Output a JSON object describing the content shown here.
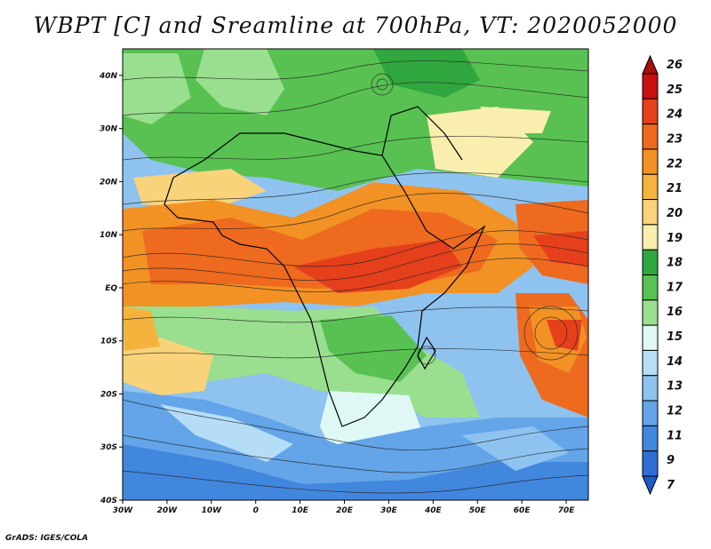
{
  "title": "WBPT [C] and Sreamline at 700hPa, VT: 2020052000",
  "credit": "GrADS: IGES/COLA",
  "map": {
    "lon_range": [
      -30,
      75
    ],
    "lat_range": [
      -40,
      45
    ],
    "lon_ticks": [
      {
        "value": -30,
        "label": "30W"
      },
      {
        "value": -20,
        "label": "20W"
      },
      {
        "value": -10,
        "label": "10W"
      },
      {
        "value": 0,
        "label": "0"
      },
      {
        "value": 10,
        "label": "10E"
      },
      {
        "value": 20,
        "label": "20E"
      },
      {
        "value": 30,
        "label": "30E"
      },
      {
        "value": 40,
        "label": "40E"
      },
      {
        "value": 50,
        "label": "50E"
      },
      {
        "value": 60,
        "label": "60E"
      },
      {
        "value": 70,
        "label": "70E"
      }
    ],
    "lat_ticks": [
      {
        "value": 40,
        "label": "40N"
      },
      {
        "value": 30,
        "label": "30N"
      },
      {
        "value": 20,
        "label": "20N"
      },
      {
        "value": 10,
        "label": "10N"
      },
      {
        "value": 0,
        "label": "EQ"
      },
      {
        "value": -10,
        "label": "10S"
      },
      {
        "value": -20,
        "label": "20S"
      },
      {
        "value": -30,
        "label": "30S"
      },
      {
        "value": -40,
        "label": "40S"
      }
    ]
  },
  "colorbar": {
    "levels": [
      {
        "label": "26",
        "color": "#a50f0d"
      },
      {
        "label": "25",
        "color": "#c8100e"
      },
      {
        "label": "24",
        "color": "#e5401b"
      },
      {
        "label": "23",
        "color": "#ee6a1f"
      },
      {
        "label": "22",
        "color": "#f29225"
      },
      {
        "label": "21",
        "color": "#f5b33e"
      },
      {
        "label": "20",
        "color": "#f9d37a"
      },
      {
        "label": "19",
        "color": "#faeeae"
      },
      {
        "label": "18",
        "color": "#2fa63e"
      },
      {
        "label": "17",
        "color": "#58c152"
      },
      {
        "label": "16",
        "color": "#9adf8f"
      },
      {
        "label": "15",
        "color": "#dff8f6"
      },
      {
        "label": "14",
        "color": "#b6ddf6"
      },
      {
        "label": "13",
        "color": "#8ec3f0"
      },
      {
        "label": "12",
        "color": "#63a5e8"
      },
      {
        "label": "11",
        "color": "#4287de"
      },
      {
        "label": "9",
        "color": "#2d6fd4"
      },
      {
        "label": "7",
        "color": "#1a5cc8"
      }
    ]
  }
}
